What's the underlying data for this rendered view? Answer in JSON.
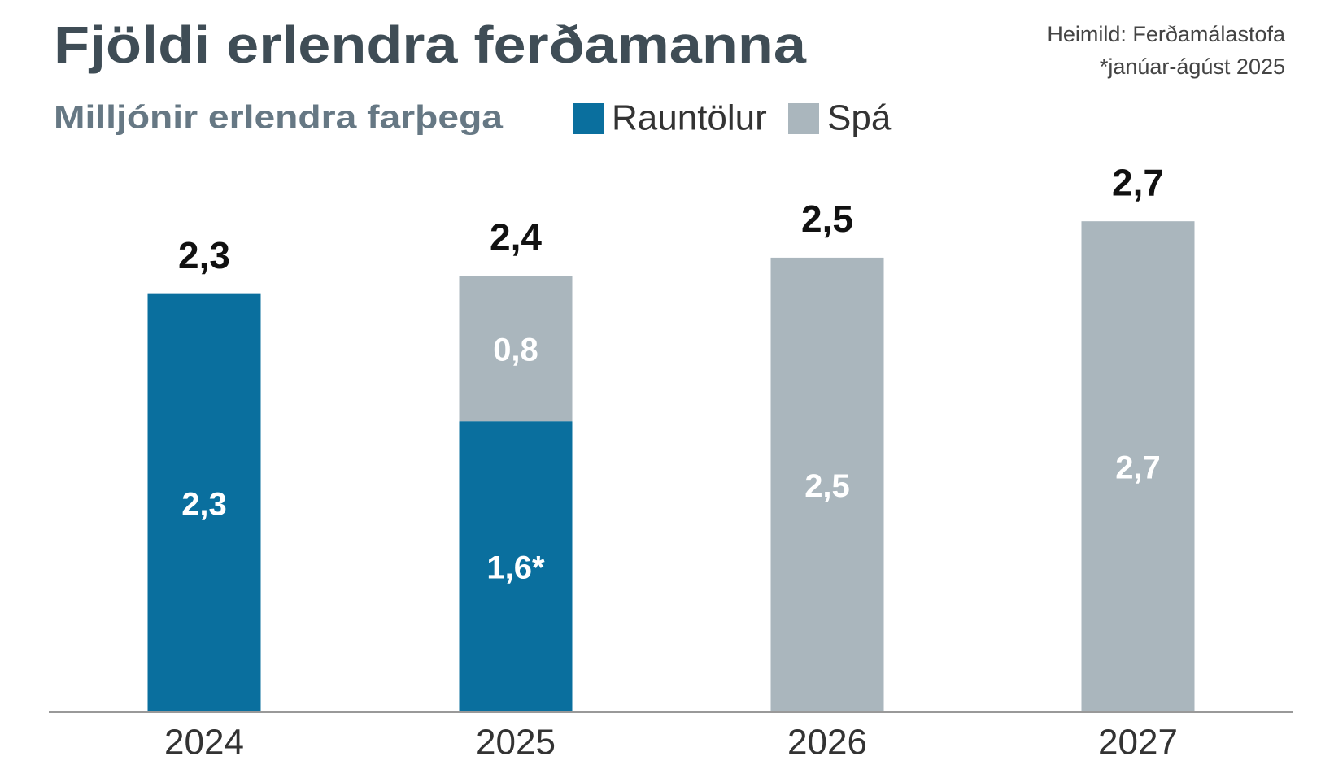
{
  "chart_data": {
    "type": "stacked_bar",
    "title": "Fjöldi erlendra ferðamanna",
    "subtitle": "Milljónir erlendra farþega",
    "source": "Heimild:  Ferðamálastofa",
    "note": "*janúar-ágúst 2025",
    "categories": [
      "2024",
      "2025",
      "2026",
      "2027"
    ],
    "series": [
      {
        "name": "Rauntölur",
        "color": "#0a6f9e",
        "values": [
          2.3,
          1.6,
          null,
          null
        ],
        "value_labels": [
          "2,3",
          "1,6*",
          null,
          null
        ]
      },
      {
        "name": "Spá",
        "color": "#aab6bd",
        "values": [
          null,
          0.8,
          2.5,
          2.7
        ],
        "value_labels": [
          null,
          "0,8",
          "2,5",
          "2,7"
        ]
      }
    ],
    "totals": [
      2.3,
      2.4,
      2.5,
      2.7
    ],
    "total_labels": [
      "2,3",
      "2,4",
      "2,5",
      "2,7"
    ],
    "ylim": [
      0,
      2.75
    ]
  }
}
